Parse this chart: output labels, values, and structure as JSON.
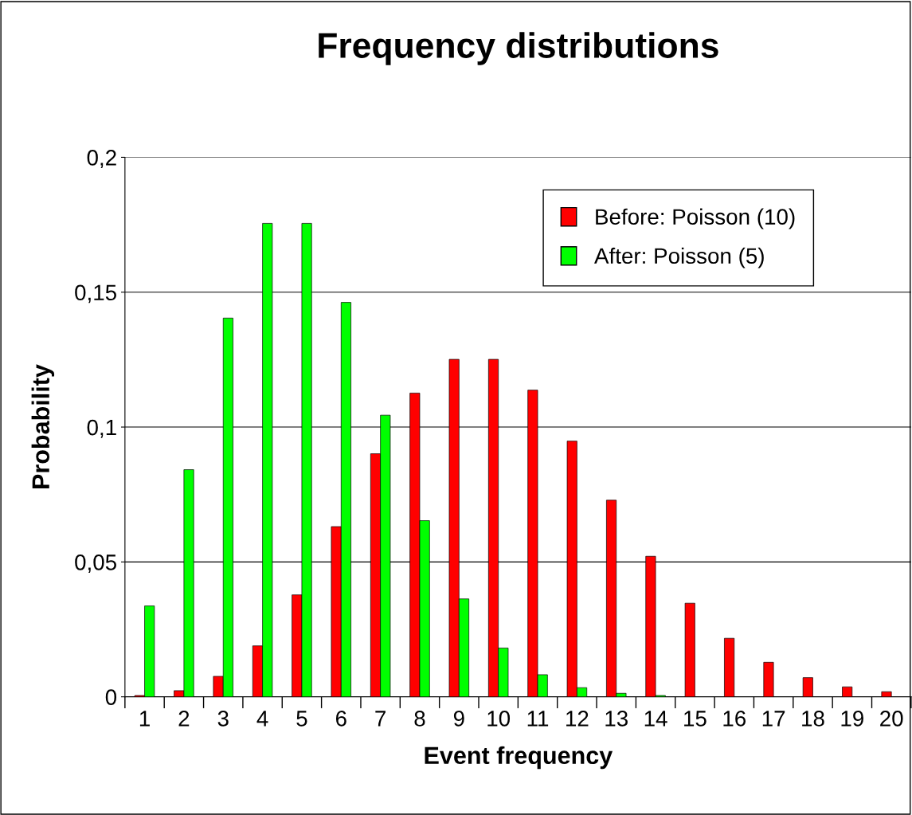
{
  "chart_data": {
    "type": "bar",
    "title": "Frequency distributions",
    "xlabel": "Event frequency",
    "ylabel": "Probability",
    "categories": [
      "1",
      "2",
      "3",
      "4",
      "5",
      "6",
      "7",
      "8",
      "9",
      "10",
      "11",
      "12",
      "13",
      "14",
      "15",
      "16",
      "17",
      "18",
      "19",
      "20"
    ],
    "series": [
      {
        "name": "Before: Poisson (10)",
        "color": "#ff0000",
        "values": [
          0.0005,
          0.0023,
          0.0076,
          0.0189,
          0.0378,
          0.0631,
          0.0901,
          0.1126,
          0.1251,
          0.1251,
          0.1137,
          0.0948,
          0.0729,
          0.0521,
          0.0347,
          0.0217,
          0.0128,
          0.0071,
          0.0037,
          0.0019
        ]
      },
      {
        "name": "After: Poisson (5)",
        "color": "#00ff00",
        "values": [
          0.0337,
          0.0842,
          0.1404,
          0.1755,
          0.1755,
          0.1462,
          0.1044,
          0.0653,
          0.0363,
          0.0181,
          0.0082,
          0.0034,
          0.0013,
          0.0005,
          null,
          null,
          null,
          null,
          null,
          null
        ]
      }
    ],
    "ylim": [
      0,
      0.2
    ],
    "yticks": [
      {
        "value": 0,
        "label": "0"
      },
      {
        "value": 0.05,
        "label": "0,05"
      },
      {
        "value": 0.1,
        "label": "0,1"
      },
      {
        "value": 0.15,
        "label": "0,15"
      },
      {
        "value": 0.2,
        "label": "0,2"
      }
    ],
    "grid": "y",
    "legend": "top right"
  }
}
